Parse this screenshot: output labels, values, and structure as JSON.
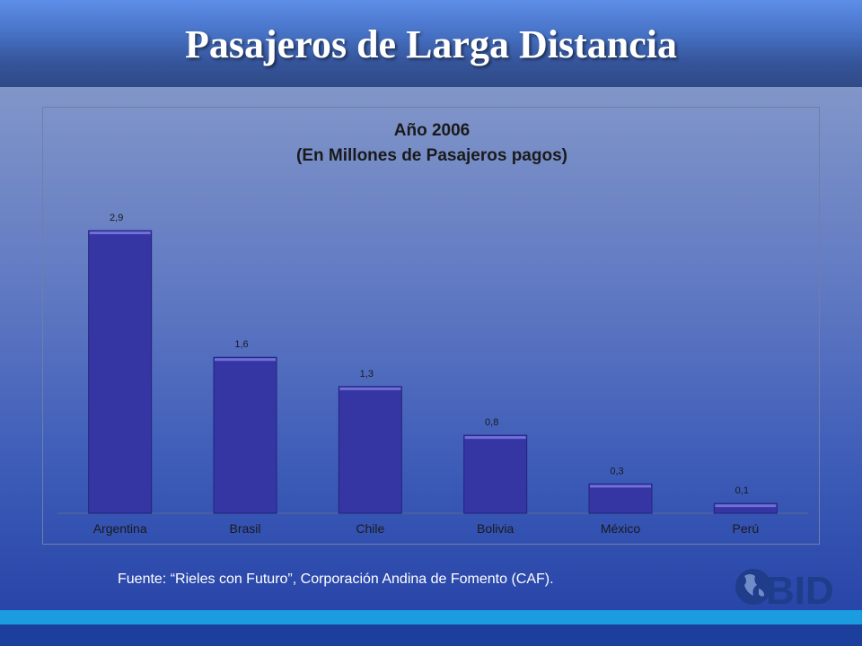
{
  "slide": {
    "title": "Pasajeros de Larga Distancia",
    "source": "Fuente: “Rieles con Futuro”, Corporación Andina de Fomento (CAF).",
    "logo_text": "BID"
  },
  "chart_data": {
    "type": "bar",
    "title": "Año 2006",
    "subtitle": "(En Millones de Pasajeros pagos)",
    "categories": [
      "Argentina",
      "Brasil",
      "Chile",
      "Bolivia",
      "México",
      "Perú"
    ],
    "values": [
      2.9,
      1.6,
      1.3,
      0.8,
      0.3,
      0.1
    ],
    "data_labels": [
      "2,9",
      "1,6",
      "1,3",
      "0,8",
      "0,3",
      "0,1"
    ],
    "xlabel": "",
    "ylabel": "",
    "ylim": [
      0,
      3.2
    ],
    "grid": false,
    "legend": "none",
    "bar_color": "#3536a4"
  },
  "colors": {
    "header": "#4874c8",
    "stripe_light": "#1b9be0",
    "stripe_dark": "#1c3f9c",
    "logo": "#1f3d8a"
  }
}
